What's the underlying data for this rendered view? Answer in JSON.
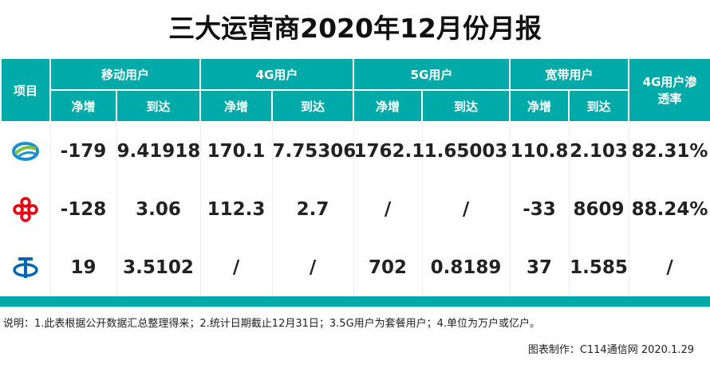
{
  "title": "三大运营商2020年12月份月报",
  "header": {
    "item": "项目",
    "groups": [
      "移动用户",
      "4G用户",
      "5G用户",
      "宽带用户",
      "4G用户渗透率"
    ],
    "net": "净增",
    "total": "到达"
  },
  "rows": [
    {
      "operator_icon": "china-mobile-logo",
      "values": [
        "-179",
        "9.41918",
        "170.1",
        "7.75306",
        "1762.1",
        "1.65003",
        "110.8",
        "2.103",
        "82.31%"
      ]
    },
    {
      "operator_icon": "china-unicom-logo",
      "values": [
        "-128",
        "3.06",
        "112.3",
        "2.7",
        "/",
        "/",
        "-33",
        "8609",
        "88.24%"
      ]
    },
    {
      "operator_icon": "china-telecom-logo",
      "values": [
        "19",
        "3.5102",
        "/",
        "/",
        "702",
        "0.8189",
        "37",
        "1.585",
        "/"
      ]
    }
  ],
  "note": "说明：1.此表根据公开数据汇总整理得来；2.统计日期截止12月31日；3.5G用户为套餐用户；4.单位为万户或亿户。",
  "credit": "图表制作：C114通信网  2020.1.29",
  "colors": {
    "accent": "#00aaa9"
  }
}
